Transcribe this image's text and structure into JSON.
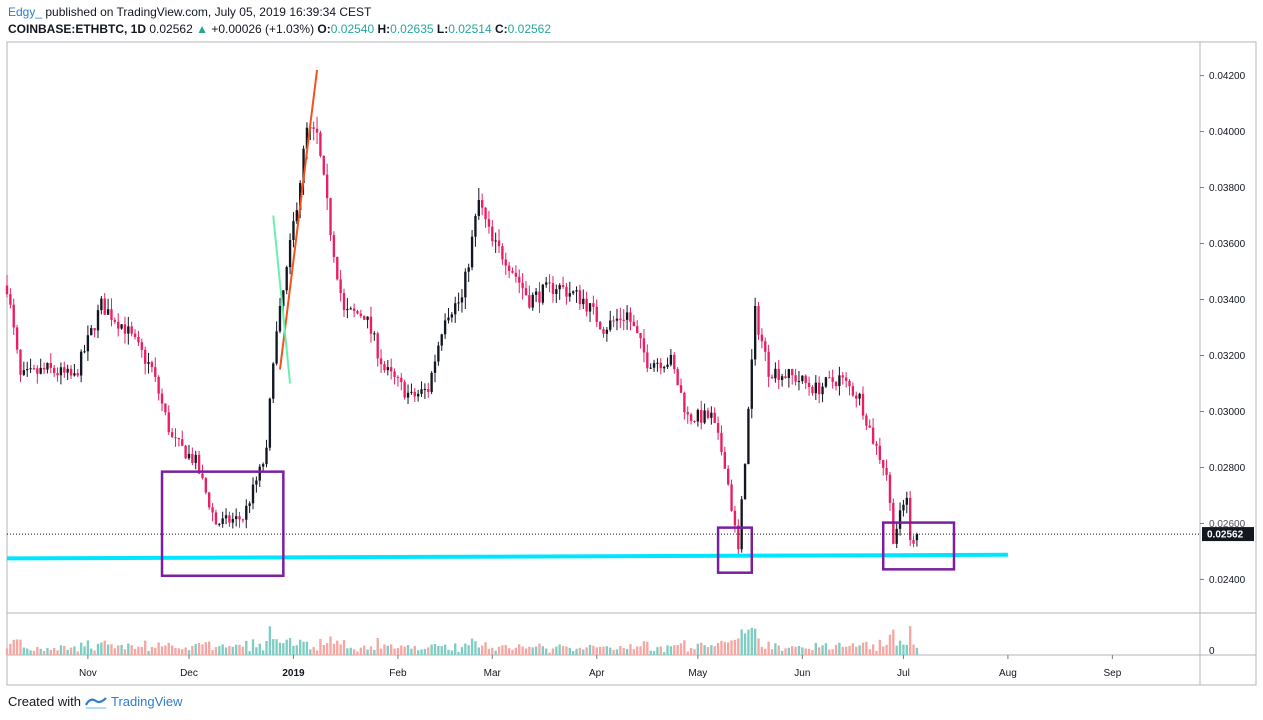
{
  "header": {
    "user": "Edgy_",
    "published": "published on TradingView.com, July 05, 2019 16:39:34 CEST",
    "symbol": "COINBASE:ETHBTC, 1D",
    "last": "0.02562",
    "change": "+0.00026 (+1.03%)",
    "o_label": "O:",
    "o_value": "0.02540",
    "h_label": "H:",
    "h_value": "0.02635",
    "l_label": "L:",
    "l_value": "0.02514",
    "c_label": "C:",
    "c_value": "0.02562"
  },
  "footer": {
    "created_with": "Created with",
    "brand": "TradingView"
  },
  "colors": {
    "bull": "#131722",
    "bear": "#e91e63",
    "cyan": "#00e5ff",
    "box": "#7b1fa2",
    "orange": "#f4511e",
    "green": "#69f0ae",
    "vol_up": "#7fcdc2",
    "vol_down": "#f4a7a3",
    "grid": "#d1d4dc",
    "axis_text": "#131722"
  },
  "chart_data": {
    "type": "candlestick",
    "title": "",
    "y_axis": {
      "min": 0.0228,
      "max": 0.0432,
      "ticks": [
        0.024,
        0.026,
        0.028,
        0.03,
        0.032,
        0.034,
        0.036,
        0.038,
        0.04,
        0.042
      ],
      "tick_labels": [
        "0.02400",
        "0.02600",
        "0.02800",
        "0.03000",
        "0.03200",
        "0.03400",
        "0.03600",
        "0.03800",
        "0.04000",
        "0.04200"
      ]
    },
    "x_axis": {
      "start": "2018-10-08",
      "end": "2019-09-27",
      "ticks": [
        {
          "date": "2018-11-01",
          "label": "Nov",
          "bold": false
        },
        {
          "date": "2018-12-01",
          "label": "Dec",
          "bold": false
        },
        {
          "date": "2019-01-01",
          "label": "2019",
          "bold": true
        },
        {
          "date": "2019-02-01",
          "label": "Feb",
          "bold": false
        },
        {
          "date": "2019-03-01",
          "label": "Mar",
          "bold": false
        },
        {
          "date": "2019-04-01",
          "label": "Apr",
          "bold": false
        },
        {
          "date": "2019-05-01",
          "label": "May",
          "bold": false
        },
        {
          "date": "2019-06-01",
          "label": "Jun",
          "bold": false
        },
        {
          "date": "2019-07-01",
          "label": "Jul",
          "bold": false
        },
        {
          "date": "2019-08-01",
          "label": "Aug",
          "bold": false
        },
        {
          "date": "2019-09-01",
          "label": "Sep",
          "bold": false
        }
      ]
    },
    "last_price": {
      "value": 0.02562,
      "label": "0.02562",
      "partial_label": "0.02600"
    },
    "volume_axis_label": "0",
    "close_path": [
      [
        "2018-10-08",
        0.0345
      ],
      [
        "2018-10-12",
        0.0312
      ],
      [
        "2018-10-20",
        0.0315
      ],
      [
        "2018-10-28",
        0.0312
      ],
      [
        "2018-11-05",
        0.0338
      ],
      [
        "2018-11-12",
        0.033
      ],
      [
        "2018-11-20",
        0.0315
      ],
      [
        "2018-11-26",
        0.029
      ],
      [
        "2018-12-03",
        0.0282
      ],
      [
        "2018-12-09",
        0.026
      ],
      [
        "2018-12-17",
        0.0262
      ],
      [
        "2018-12-24",
        0.0285
      ],
      [
        "2018-12-26",
        0.032
      ],
      [
        "2018-12-30",
        0.035
      ],
      [
        "2019-01-05",
        0.04
      ],
      [
        "2019-01-08",
        0.0398
      ],
      [
        "2019-01-12",
        0.0365
      ],
      [
        "2019-01-16",
        0.0335
      ],
      [
        "2019-01-22",
        0.0335
      ],
      [
        "2019-01-28",
        0.0315
      ],
      [
        "2019-02-05",
        0.0305
      ],
      [
        "2019-02-10",
        0.0308
      ],
      [
        "2019-02-15",
        0.0335
      ],
      [
        "2019-02-20",
        0.034
      ],
      [
        "2019-02-25",
        0.0375
      ],
      [
        "2019-03-01",
        0.036
      ],
      [
        "2019-03-05",
        0.0355
      ],
      [
        "2019-03-12",
        0.034
      ],
      [
        "2019-03-20",
        0.0345
      ],
      [
        "2019-03-28",
        0.034
      ],
      [
        "2019-04-03",
        0.033
      ],
      [
        "2019-04-10",
        0.0335
      ],
      [
        "2019-04-16",
        0.0318
      ],
      [
        "2019-04-23",
        0.0318
      ],
      [
        "2019-04-28",
        0.0298
      ],
      [
        "2019-05-05",
        0.0298
      ],
      [
        "2019-05-09",
        0.0282
      ],
      [
        "2019-05-13",
        0.025
      ],
      [
        "2019-05-16",
        0.03
      ],
      [
        "2019-05-18",
        0.0335
      ],
      [
        "2019-05-22",
        0.0315
      ],
      [
        "2019-05-30",
        0.0312
      ],
      [
        "2019-06-05",
        0.0308
      ],
      [
        "2019-06-12",
        0.0312
      ],
      [
        "2019-06-18",
        0.0305
      ],
      [
        "2019-06-22",
        0.029
      ],
      [
        "2019-06-26",
        0.0278
      ],
      [
        "2019-06-28",
        0.0255
      ],
      [
        "2019-07-02",
        0.027
      ],
      [
        "2019-07-03",
        0.0253
      ],
      [
        "2019-07-05",
        0.02562
      ]
    ],
    "annotations": {
      "support_line": {
        "from": [
          "2018-10-08",
          0.02475
        ],
        "to": [
          "2019-08-01",
          0.02488
        ],
        "color": "cyan"
      },
      "orange_trend": {
        "from": [
          "2018-12-28",
          0.0315
        ],
        "to": [
          "2019-01-08",
          0.0422
        ]
      },
      "green_trend": {
        "from": [
          "2018-12-26",
          0.037
        ],
        "to": [
          "2018-12-31",
          0.031
        ]
      },
      "boxes": [
        {
          "from": "2018-11-23",
          "to": "2018-12-29",
          "top": 0.02785,
          "bottom": 0.02413
        },
        {
          "from": "2019-05-07",
          "to": "2019-05-17",
          "top": 0.02585,
          "bottom": 0.02424
        },
        {
          "from": "2019-06-25",
          "to": "2019-07-16",
          "top": 0.02603,
          "bottom": 0.02436
        }
      ]
    }
  }
}
